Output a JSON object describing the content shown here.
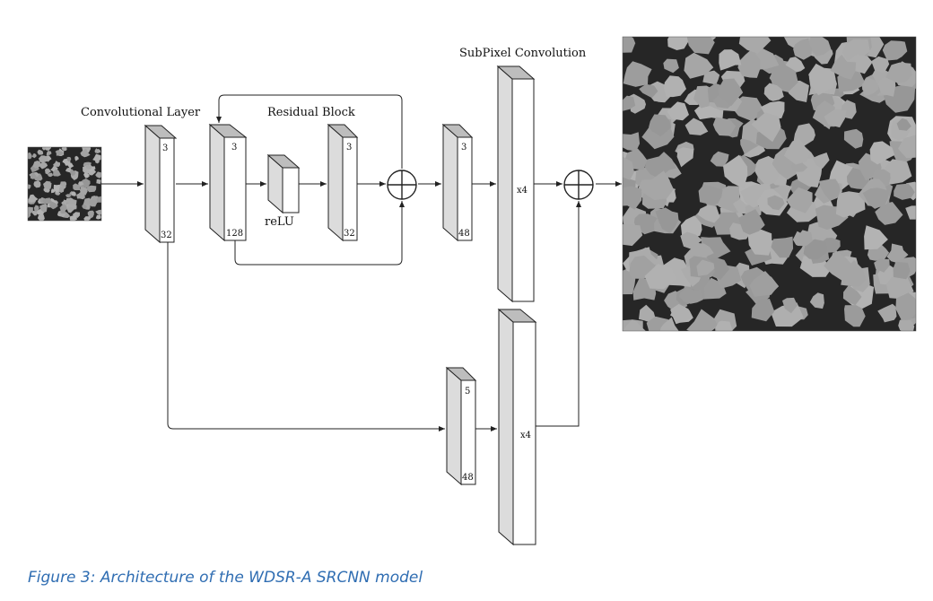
{
  "labels": {
    "conv_layer": "Convolutional Layer",
    "residual_block": "Residual Block",
    "subpixel": "SubPixel Convolution",
    "relu": "reLU"
  },
  "blocks": {
    "conv": {
      "top": "3",
      "bottom": "32"
    },
    "res1": {
      "top": "3",
      "bottom": "128"
    },
    "res2": {
      "top": "3",
      "bottom": "32"
    },
    "pre_sub": {
      "top": "3",
      "bottom": "48"
    },
    "sub_top": {
      "mid": "x4"
    },
    "skip_conv": {
      "top": "5",
      "bottom": "48"
    },
    "sub_bottom": {
      "mid": "x4"
    }
  },
  "caption": "Figure 3: Architecture of the WDSR-A SRCNN model",
  "colors": {
    "caption": "#2f6db2",
    "grain": "#a9a9a9",
    "pore": "#262626"
  }
}
